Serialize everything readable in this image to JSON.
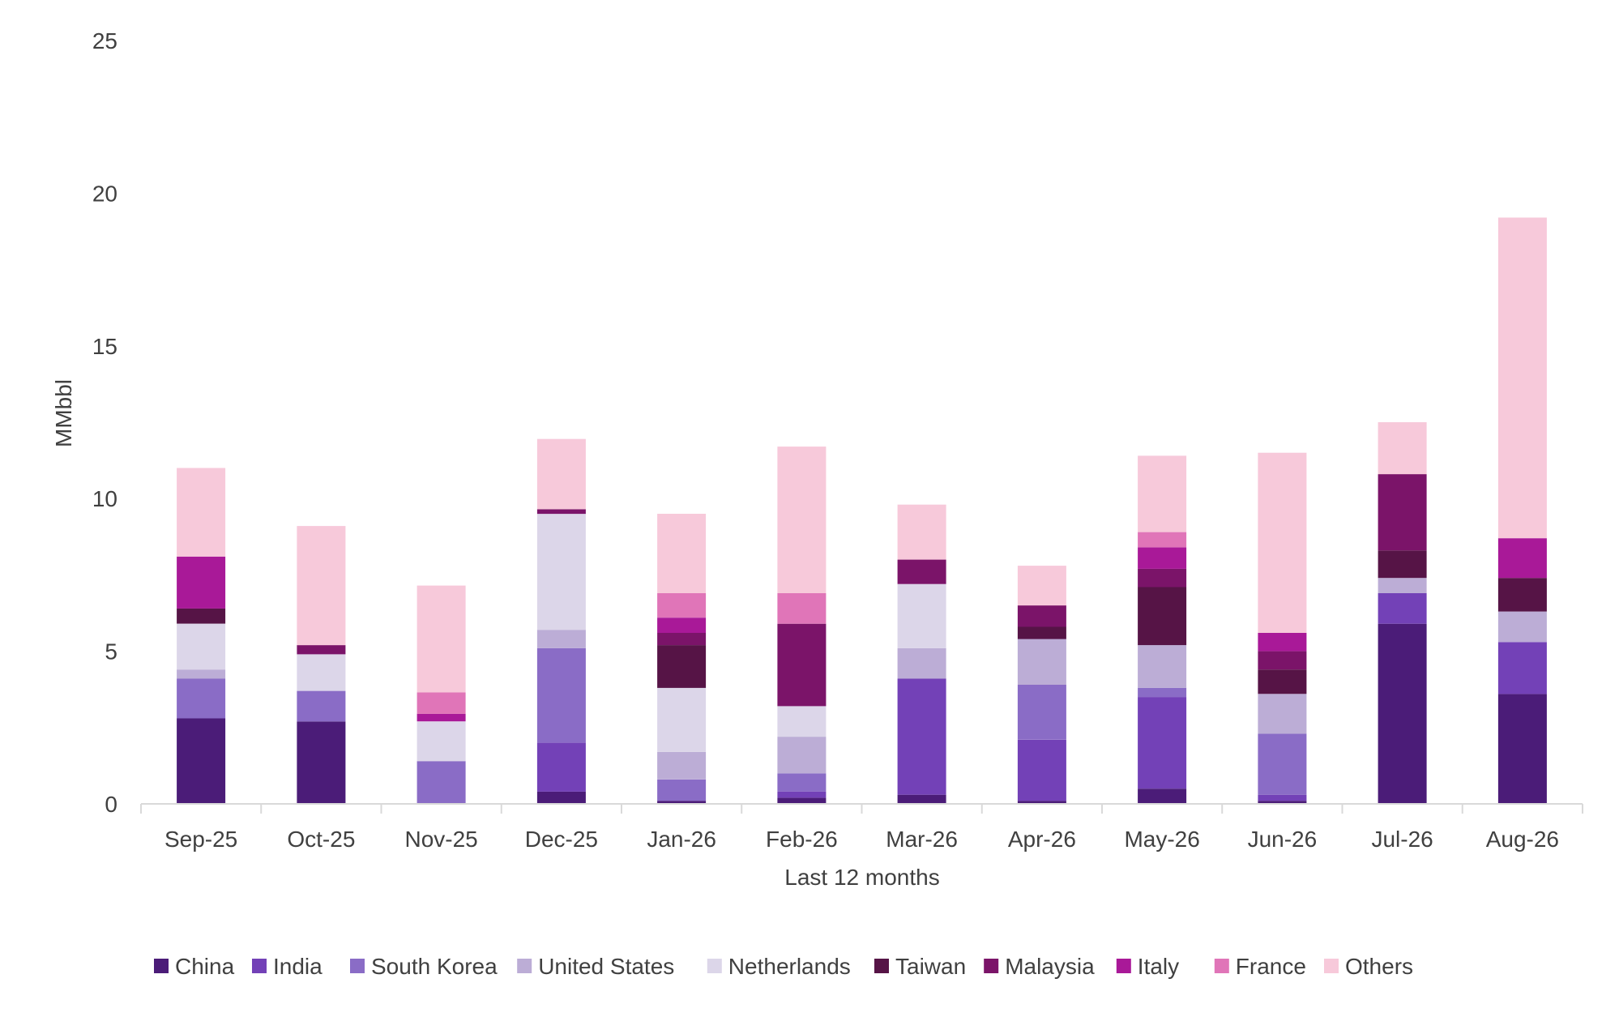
{
  "chart_data": {
    "type": "bar",
    "stacked": true,
    "title": "",
    "xlabel": "Last 12 months",
    "ylabel": "MMbbl",
    "ylim": [
      0,
      25
    ],
    "yticks": [
      0,
      5,
      10,
      15,
      20,
      25
    ],
    "grid": false,
    "legend_position": "bottom",
    "categories": [
      "Sep-25",
      "Oct-25",
      "Nov-25",
      "Dec-25",
      "Jan-26",
      "Feb-26",
      "Mar-26",
      "Apr-26",
      "May-26",
      "Jun-26",
      "Jul-26",
      "Aug-26"
    ],
    "series": [
      {
        "name": "China",
        "color": "#4b1c78",
        "values": [
          2.8,
          2.7,
          0.0,
          0.4,
          0.1,
          0.2,
          0.3,
          0.1,
          0.5,
          0.1,
          5.9,
          3.6
        ]
      },
      {
        "name": "India",
        "color": "#7341b7",
        "values": [
          0.0,
          0.0,
          0.0,
          1.6,
          0.0,
          0.2,
          3.8,
          2.0,
          3.0,
          0.2,
          1.0,
          1.7
        ]
      },
      {
        "name": "South Korea",
        "color": "#8a6cc6",
        "values": [
          1.3,
          1.0,
          1.4,
          3.1,
          0.7,
          0.6,
          0.0,
          1.8,
          0.3,
          2.0,
          0.0,
          0.0
        ]
      },
      {
        "name": "United States",
        "color": "#bcadd6",
        "values": [
          0.3,
          0.0,
          0.0,
          0.6,
          0.9,
          1.2,
          1.0,
          1.5,
          1.4,
          1.3,
          0.5,
          1.0
        ]
      },
      {
        "name": "Netherlands",
        "color": "#dcd6e9",
        "values": [
          1.5,
          1.2,
          1.3,
          3.8,
          2.1,
          1.0,
          2.1,
          0.0,
          0.0,
          0.0,
          0.0,
          0.0
        ]
      },
      {
        "name": "Taiwan",
        "color": "#561446",
        "values": [
          0.5,
          0.0,
          0.0,
          0.0,
          1.4,
          0.0,
          0.0,
          0.4,
          1.9,
          0.8,
          0.9,
          1.1
        ]
      },
      {
        "name": "Malaysia",
        "color": "#7b1469",
        "values": [
          0.0,
          0.3,
          0.0,
          0.15,
          0.4,
          2.7,
          0.8,
          0.7,
          0.6,
          0.6,
          2.5,
          0.0
        ]
      },
      {
        "name": "Italy",
        "color": "#a91998",
        "values": [
          1.7,
          0.0,
          0.25,
          0.0,
          0.5,
          0.0,
          0.0,
          0.0,
          0.7,
          0.6,
          0.0,
          1.3
        ]
      },
      {
        "name": "France",
        "color": "#e075b8",
        "values": [
          0.0,
          0.0,
          0.7,
          0.0,
          0.8,
          1.0,
          0.0,
          0.0,
          0.5,
          0.0,
          0.0,
          0.0
        ]
      },
      {
        "name": "Others",
        "color": "#f7c9da",
        "values": [
          2.9,
          3.9,
          3.5,
          2.3,
          2.6,
          4.8,
          1.8,
          1.3,
          2.5,
          5.9,
          1.7,
          10.5
        ]
      }
    ]
  }
}
